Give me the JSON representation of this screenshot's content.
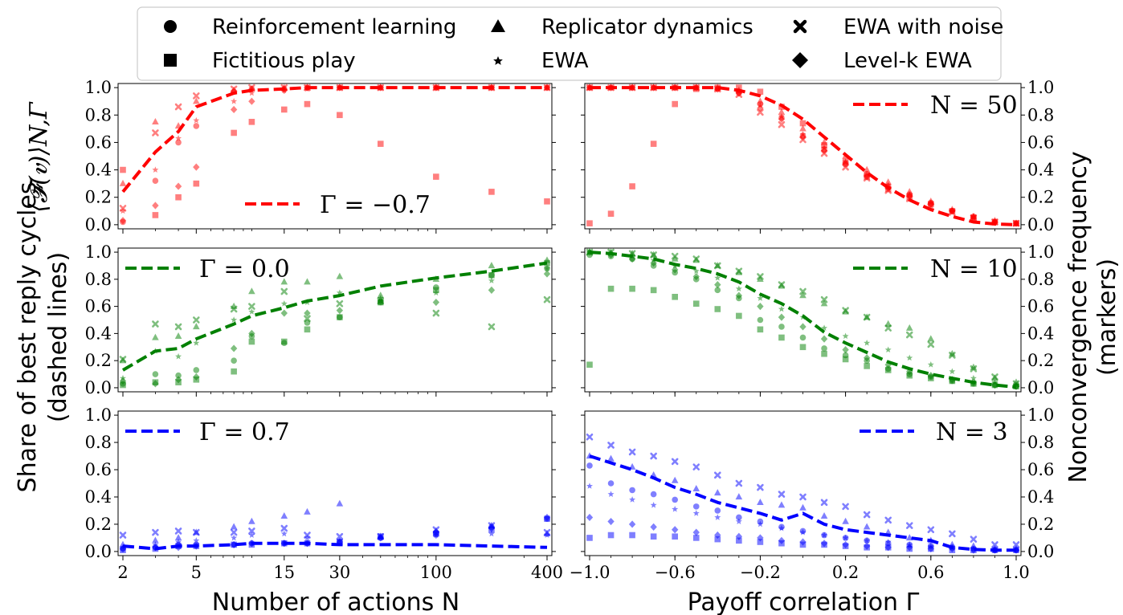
{
  "legend": {
    "items": [
      {
        "label": "Reinforcement learning",
        "marker": "circle-icon"
      },
      {
        "label": "Fictitious play",
        "marker": "square-icon"
      },
      {
        "label": "Replicator dynamics",
        "marker": "triangle-icon"
      },
      {
        "label": "EWA",
        "marker": "star-icon"
      },
      {
        "label": "EWA with noise",
        "marker": "x-mark-icon"
      },
      {
        "label": "Level-k EWA",
        "marker": "diamond-icon"
      }
    ]
  },
  "axes": {
    "left_ylabel_math": "⟨𝓕(𝒗)⟩N,Γ",
    "left_ylabel_line1": "Share of best reply cycles",
    "left_ylabel_line2": "(dashed lines)",
    "right_ylabel_line1": "Nonconvergence frequency",
    "right_ylabel_line2": "(markers)",
    "left_xlabel": "Number of actions N",
    "right_xlabel": "Payoff correlation Γ",
    "y_ticks": [
      "0.0",
      "0.2",
      "0.4",
      "0.6",
      "0.8",
      "1.0"
    ],
    "left_x_ticks": [
      "2",
      "5",
      "15",
      "30",
      "100",
      "400"
    ],
    "right_x_ticks": [
      "−1.0",
      "−0.6",
      "−0.2",
      "0.2",
      "0.6",
      "1.0"
    ]
  },
  "colors": {
    "red": "#ff0000",
    "green": "#008000",
    "blue": "#0000ff"
  },
  "chart_data": [
    {
      "type": "scatter",
      "panel": "left-top",
      "color": "red",
      "legend_label": "Γ = −0.7",
      "x_scale": "log",
      "xlim": [
        2,
        400
      ],
      "ylim": [
        0,
        1
      ],
      "x": [
        2,
        3,
        4,
        5,
        8,
        10,
        15,
        20,
        30,
        50,
        100,
        200,
        400
      ],
      "line": [
        0.24,
        0.53,
        0.68,
        0.86,
        0.96,
        0.98,
        0.99,
        1.0,
        1.0,
        1.0,
        1.0,
        1.0,
        1.0
      ],
      "series": [
        {
          "name": "Reinforcement learning",
          "values": [
            0.02,
            0.32,
            0.6,
            0.72,
            0.97,
            0.99,
            0.99,
            1.0,
            1.0,
            1.0,
            1.0,
            1.0,
            1.0
          ]
        },
        {
          "name": "Fictitious play",
          "values": [
            0.4,
            0.07,
            0.2,
            0.3,
            0.67,
            0.75,
            0.84,
            0.88,
            0.8,
            0.59,
            0.35,
            0.24,
            0.17
          ]
        },
        {
          "name": "Replicator dynamics",
          "values": [
            0.3,
            0.75,
            0.72,
            0.9,
            0.98,
            0.99,
            1.0,
            1.0,
            1.0,
            1.0,
            1.0,
            1.0,
            1.0
          ]
        },
        {
          "name": "EWA",
          "values": [
            0.1,
            0.4,
            0.63,
            0.76,
            0.9,
            0.96,
            0.98,
            0.99,
            1.0,
            1.0,
            1.0,
            1.0,
            1.0
          ]
        },
        {
          "name": "EWA with noise",
          "values": [
            0.12,
            0.67,
            0.86,
            0.94,
            0.99,
            1.0,
            1.0,
            1.0,
            1.0,
            1.0,
            1.0,
            1.0,
            1.0
          ]
        },
        {
          "name": "Level-k EWA",
          "values": [
            0.03,
            0.14,
            0.28,
            0.42,
            0.84,
            0.9,
            0.98,
            1.0,
            1.0,
            1.0,
            1.0,
            1.0,
            1.0
          ]
        }
      ]
    },
    {
      "type": "scatter",
      "panel": "left-middle",
      "color": "green",
      "legend_label": "Γ = 0.0",
      "x_scale": "log",
      "xlim": [
        2,
        400
      ],
      "ylim": [
        0,
        1
      ],
      "x": [
        2,
        3,
        4,
        5,
        8,
        10,
        15,
        20,
        30,
        50,
        100,
        200,
        400
      ],
      "line": [
        0.13,
        0.27,
        0.29,
        0.36,
        0.47,
        0.53,
        0.59,
        0.64,
        0.68,
        0.75,
        0.81,
        0.86,
        0.92
      ],
      "series": [
        {
          "name": "Reinforcement learning",
          "values": [
            0.03,
            0.1,
            0.09,
            0.13,
            0.2,
            0.38,
            0.33,
            0.48,
            0.52,
            0.63,
            0.74,
            0.83,
            0.88
          ]
        },
        {
          "name": "Fictitious play",
          "values": [
            0.02,
            0.04,
            0.04,
            0.06,
            0.12,
            0.34,
            0.34,
            0.43,
            0.52,
            0.63,
            0.72,
            0.83,
            0.92
          ]
        },
        {
          "name": "Replicator dynamics",
          "values": [
            0.2,
            0.37,
            0.38,
            0.45,
            0.6,
            0.71,
            0.78,
            0.78,
            0.82,
            0.68,
            0.8,
            0.9,
            0.94
          ]
        },
        {
          "name": "EWA",
          "values": [
            0.07,
            0.27,
            0.23,
            0.33,
            0.5,
            0.56,
            0.62,
            0.63,
            0.7,
            0.66,
            0.7,
            0.79,
            0.88
          ]
        },
        {
          "name": "EWA with noise",
          "values": [
            0.21,
            0.47,
            0.45,
            0.5,
            0.58,
            0.6,
            0.71,
            0.51,
            0.62,
            0.64,
            0.55,
            0.45,
            0.65
          ]
        },
        {
          "name": "Level-k EWA",
          "values": [
            0.05,
            0.03,
            0.06,
            0.08,
            0.29,
            0.4,
            0.55,
            0.55,
            0.57,
            0.64,
            0.63,
            0.72,
            0.84
          ]
        }
      ]
    },
    {
      "type": "scatter",
      "panel": "left-bottom",
      "color": "blue",
      "legend_label": "Γ = 0.7",
      "x_scale": "log",
      "xlim": [
        2,
        400
      ],
      "ylim": [
        0,
        1
      ],
      "x": [
        2,
        3,
        4,
        5,
        8,
        10,
        15,
        20,
        30,
        50,
        100,
        200,
        400
      ],
      "line": [
        0.04,
        0.02,
        0.04,
        0.04,
        0.05,
        0.06,
        0.06,
        0.06,
        0.05,
        0.05,
        0.05,
        0.04,
        0.03
      ],
      "series": [
        {
          "name": "Reinforcement learning",
          "values": [
            0.02,
            0.03,
            0.05,
            0.05,
            0.05,
            0.06,
            0.06,
            0.06,
            0.07,
            0.1,
            0.14,
            0.18,
            0.24
          ]
        },
        {
          "name": "Fictitious play",
          "values": [
            0.01,
            0.02,
            0.04,
            0.04,
            0.05,
            0.05,
            0.06,
            0.06,
            0.07,
            0.11,
            0.13,
            0.16,
            0.24
          ]
        },
        {
          "name": "Replicator dynamics",
          "values": [
            0.05,
            0.08,
            0.1,
            0.14,
            0.18,
            0.22,
            0.26,
            0.29,
            0.35,
            0.11,
            0.15,
            0.19,
            0.13
          ]
        },
        {
          "name": "EWA",
          "values": [
            0.03,
            0.05,
            0.07,
            0.08,
            0.1,
            0.12,
            0.13,
            0.1,
            0.08,
            0.1,
            0.12,
            0.13,
            0.12
          ]
        },
        {
          "name": "EWA with noise",
          "values": [
            0.12,
            0.14,
            0.15,
            0.14,
            0.14,
            0.15,
            0.17,
            0.12,
            0.11,
            0.11,
            0.16,
            0.19,
            0.14
          ]
        },
        {
          "name": "Level-k EWA",
          "values": [
            0.02,
            0.03,
            0.03,
            0.04,
            0.05,
            0.06,
            0.06,
            0.06,
            0.07,
            0.1,
            0.12,
            0.17,
            0.25
          ]
        }
      ]
    },
    {
      "type": "scatter",
      "panel": "right-top",
      "color": "red",
      "legend_label": "N = 50",
      "xlim": [
        -1.0,
        1.0
      ],
      "ylim": [
        0,
        1
      ],
      "x": [
        -1.0,
        -0.9,
        -0.8,
        -0.7,
        -0.6,
        -0.5,
        -0.4,
        -0.3,
        -0.2,
        -0.1,
        0.0,
        0.1,
        0.2,
        0.3,
        0.4,
        0.5,
        0.6,
        0.7,
        0.8,
        0.9,
        1.0
      ],
      "line": [
        1.0,
        1.0,
        1.0,
        1.0,
        1.0,
        1.0,
        1.0,
        0.98,
        0.94,
        0.87,
        0.77,
        0.64,
        0.51,
        0.38,
        0.27,
        0.18,
        0.11,
        0.06,
        0.02,
        0.005,
        0.0
      ],
      "series": [
        {
          "name": "Reinforcement learning",
          "values": [
            1.0,
            1.0,
            1.0,
            1.0,
            1.0,
            1.0,
            0.99,
            0.96,
            0.88,
            0.78,
            0.65,
            0.55,
            0.44,
            0.37,
            0.28,
            0.22,
            0.16,
            0.1,
            0.06,
            0.02,
            0.01
          ]
        },
        {
          "name": "Fictitious play",
          "values": [
            0.01,
            0.08,
            0.28,
            0.59,
            0.88,
            0.99,
            1.0,
            1.0,
            0.97,
            0.86,
            0.74,
            0.58,
            0.46,
            0.35,
            0.26,
            0.2,
            0.15,
            0.1,
            0.05,
            0.02,
            0.01
          ]
        },
        {
          "name": "Replicator dynamics",
          "values": [
            1.0,
            1.0,
            1.0,
            1.0,
            1.0,
            1.0,
            1.0,
            0.98,
            0.9,
            0.82,
            0.7,
            0.6,
            0.5,
            0.4,
            0.31,
            0.24,
            0.17,
            0.11,
            0.06,
            0.03,
            0.01
          ]
        },
        {
          "name": "EWA",
          "values": [
            1.0,
            1.0,
            1.0,
            1.0,
            1.0,
            1.0,
            0.99,
            0.97,
            0.87,
            0.79,
            0.66,
            0.56,
            0.46,
            0.37,
            0.29,
            0.22,
            0.16,
            0.1,
            0.06,
            0.02,
            0.01
          ]
        },
        {
          "name": "EWA with noise",
          "values": [
            1.0,
            1.0,
            1.0,
            1.0,
            1.0,
            1.0,
            0.99,
            0.95,
            0.82,
            0.73,
            0.62,
            0.52,
            0.42,
            0.34,
            0.25,
            0.19,
            0.13,
            0.09,
            0.05,
            0.02,
            0.01
          ]
        },
        {
          "name": "Level-k EWA",
          "values": [
            1.0,
            1.0,
            1.0,
            1.0,
            1.0,
            1.0,
            0.99,
            0.96,
            0.85,
            0.77,
            0.64,
            0.54,
            0.45,
            0.35,
            0.27,
            0.21,
            0.15,
            0.1,
            0.05,
            0.02,
            0.01
          ]
        }
      ]
    },
    {
      "type": "scatter",
      "panel": "right-middle",
      "color": "green",
      "legend_label": "N = 10",
      "xlim": [
        -1.0,
        1.0
      ],
      "ylim": [
        0,
        1
      ],
      "x": [
        -1.0,
        -0.9,
        -0.8,
        -0.7,
        -0.6,
        -0.5,
        -0.4,
        -0.3,
        -0.2,
        -0.1,
        0.0,
        0.1,
        0.2,
        0.3,
        0.4,
        0.5,
        0.6,
        0.7,
        0.8,
        0.9,
        1.0
      ],
      "line": [
        1.0,
        0.99,
        0.97,
        0.95,
        0.91,
        0.88,
        0.84,
        0.78,
        0.69,
        0.62,
        0.53,
        0.41,
        0.33,
        0.26,
        0.19,
        0.14,
        0.1,
        0.07,
        0.04,
        0.02,
        0.005
      ],
      "series": [
        {
          "name": "Reinforcement learning",
          "values": [
            0.98,
            0.97,
            0.95,
            0.9,
            0.85,
            0.8,
            0.72,
            0.66,
            0.5,
            0.45,
            0.37,
            0.29,
            0.24,
            0.2,
            0.14,
            0.1,
            0.08,
            0.05,
            0.03,
            0.02,
            0.01
          ]
        },
        {
          "name": "Fictitious play",
          "values": [
            0.17,
            0.73,
            0.73,
            0.72,
            0.67,
            0.62,
            0.58,
            0.53,
            0.43,
            0.37,
            0.3,
            0.25,
            0.21,
            0.16,
            0.13,
            0.09,
            0.07,
            0.05,
            0.03,
            0.02,
            0.01
          ]
        },
        {
          "name": "Replicator dynamics",
          "values": [
            1.0,
            1.0,
            0.99,
            0.98,
            0.95,
            0.94,
            0.9,
            0.85,
            0.8,
            0.75,
            0.68,
            0.62,
            0.56,
            0.52,
            0.47,
            0.44,
            0.36,
            0.25,
            0.15,
            0.07,
            0.04
          ]
        },
        {
          "name": "EWA",
          "values": [
            1.0,
            0.99,
            0.97,
            0.94,
            0.9,
            0.86,
            0.81,
            0.73,
            0.66,
            0.58,
            0.52,
            0.44,
            0.38,
            0.33,
            0.28,
            0.22,
            0.17,
            0.12,
            0.07,
            0.04,
            0.02
          ]
        },
        {
          "name": "EWA with noise",
          "values": [
            1.0,
            1.0,
            0.99,
            0.98,
            0.97,
            0.95,
            0.9,
            0.86,
            0.82,
            0.76,
            0.71,
            0.65,
            0.57,
            0.52,
            0.44,
            0.39,
            0.32,
            0.24,
            0.14,
            0.08,
            0.03
          ]
        },
        {
          "name": "Level-k EWA",
          "values": [
            1.0,
            0.98,
            0.95,
            0.92,
            0.87,
            0.82,
            0.76,
            0.68,
            0.6,
            0.52,
            0.45,
            0.36,
            0.28,
            0.22,
            0.17,
            0.12,
            0.09,
            0.06,
            0.04,
            0.02,
            0.01
          ]
        }
      ]
    },
    {
      "type": "scatter",
      "panel": "right-bottom",
      "color": "blue",
      "legend_label": "N = 3",
      "xlim": [
        -1.0,
        1.0
      ],
      "ylim": [
        0,
        1
      ],
      "x": [
        -1.0,
        -0.9,
        -0.8,
        -0.7,
        -0.6,
        -0.5,
        -0.4,
        -0.3,
        -0.2,
        -0.1,
        0.0,
        0.1,
        0.2,
        0.3,
        0.4,
        0.5,
        0.6,
        0.7,
        0.8,
        0.9,
        1.0
      ],
      "line": [
        0.7,
        0.65,
        0.6,
        0.54,
        0.47,
        0.42,
        0.36,
        0.32,
        0.28,
        0.23,
        0.28,
        0.2,
        0.16,
        0.14,
        0.12,
        0.1,
        0.08,
        0.03,
        0.015,
        0.01,
        0.01
      ],
      "series": [
        {
          "name": "Reinforcement learning",
          "values": [
            0.63,
            0.5,
            0.45,
            0.42,
            0.38,
            0.33,
            0.3,
            0.25,
            0.22,
            0.18,
            0.15,
            0.12,
            0.1,
            0.08,
            0.06,
            0.05,
            0.04,
            0.03,
            0.02,
            0.01,
            0.01
          ]
        },
        {
          "name": "Fictitious play",
          "values": [
            0.1,
            0.12,
            0.12,
            0.11,
            0.11,
            0.1,
            0.09,
            0.08,
            0.07,
            0.06,
            0.05,
            0.05,
            0.04,
            0.03,
            0.03,
            0.02,
            0.02,
            0.01,
            0.01,
            0.01,
            0.01
          ]
        },
        {
          "name": "Replicator dynamics",
          "values": [
            0.7,
            0.68,
            0.62,
            0.56,
            0.52,
            0.46,
            0.43,
            0.4,
            0.36,
            0.34,
            0.32,
            0.26,
            0.22,
            0.18,
            0.14,
            0.1,
            0.08,
            0.05,
            0.04,
            0.02,
            0.02
          ]
        },
        {
          "name": "EWA",
          "values": [
            0.48,
            0.42,
            0.38,
            0.34,
            0.31,
            0.28,
            0.25,
            0.22,
            0.2,
            0.17,
            0.14,
            0.12,
            0.1,
            0.08,
            0.07,
            0.05,
            0.04,
            0.03,
            0.02,
            0.01,
            0.01
          ]
        },
        {
          "name": "EWA with noise",
          "values": [
            0.84,
            0.78,
            0.73,
            0.7,
            0.66,
            0.62,
            0.56,
            0.5,
            0.47,
            0.42,
            0.4,
            0.36,
            0.33,
            0.27,
            0.23,
            0.19,
            0.16,
            0.13,
            0.09,
            0.05,
            0.05
          ]
        },
        {
          "name": "Level-k EWA",
          "values": [
            0.25,
            0.22,
            0.2,
            0.18,
            0.16,
            0.14,
            0.12,
            0.11,
            0.1,
            0.08,
            0.07,
            0.06,
            0.05,
            0.04,
            0.03,
            0.03,
            0.02,
            0.02,
            0.01,
            0.01,
            0.01
          ]
        }
      ]
    }
  ]
}
